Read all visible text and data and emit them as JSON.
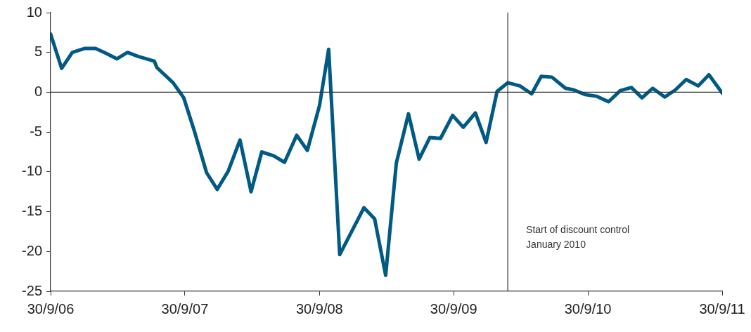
{
  "chart_data": {
    "type": "line",
    "x": [
      "2006-09-30",
      "2006-10-30",
      "2006-11-28",
      "2006-12-31",
      "2007-01-30",
      "2007-02-27",
      "2007-03-29",
      "2007-04-27",
      "2007-05-26",
      "2007-07-09",
      "2007-07-16",
      "2007-08-29",
      "2007-09-27",
      "2007-10-26",
      "2007-11-28",
      "2007-12-27",
      "2008-01-26",
      "2008-02-27",
      "2008-03-28",
      "2008-04-26",
      "2008-05-29",
      "2008-06-27",
      "2008-07-30",
      "2008-08-28",
      "2008-09-30",
      "2008-10-25",
      "2008-11-24",
      "2009-01-29",
      "2009-02-27",
      "2009-03-29",
      "2009-04-27",
      "2009-05-30",
      "2009-06-28",
      "2009-07-27",
      "2009-08-25",
      "2009-09-27",
      "2009-10-26",
      "2009-11-28",
      "2009-12-27",
      "2010-01-26",
      "2010-02-24",
      "2010-03-29",
      "2010-04-30",
      "2010-05-26",
      "2010-06-24",
      "2010-07-31",
      "2010-08-22",
      "2010-09-23",
      "2010-10-23",
      "2010-11-25",
      "2010-12-27",
      "2011-01-26",
      "2011-02-24",
      "2011-03-25",
      "2011-04-27",
      "2011-05-26",
      "2011-06-24",
      "2011-07-27",
      "2011-08-25",
      "2011-09-30"
    ],
    "series": [
      {
        "color": "#005a84",
        "values": [
          7.3,
          3.0,
          5.0,
          5.5,
          5.5,
          4.9,
          4.2,
          5.0,
          4.5,
          3.9,
          3.1,
          1.2,
          -0.7,
          -4.9,
          -10.1,
          -12.2,
          -9.9,
          -6.0,
          -12.5,
          -7.5,
          -8.0,
          -8.8,
          -5.4,
          -7.3,
          -1.7,
          5.4,
          -20.4,
          -14.5,
          -15.9,
          -23.0,
          -8.9,
          -2.7,
          -8.4,
          -5.7,
          -5.8,
          -2.9,
          -4.4,
          -2.6,
          -6.3,
          0.1,
          1.2,
          0.8,
          -0.2,
          2.0,
          1.9,
          0.5,
          0.3,
          -0.3,
          -0.5,
          -1.2,
          0.2,
          0.6,
          -0.7,
          0.5,
          -0.6,
          0.3,
          1.6,
          0.8,
          2.2,
          -0.1
        ]
      }
    ],
    "xlim": [
      "2006-09-30",
      "2011-09-30"
    ],
    "xticks": [
      {
        "value": "2006-09-30",
        "label": "30/9/06"
      },
      {
        "value": "2007-09-30",
        "label": "30/9/07"
      },
      {
        "value": "2008-09-30",
        "label": "30/9/08"
      },
      {
        "value": "2009-09-30",
        "label": "30/9/09"
      },
      {
        "value": "2010-09-30",
        "label": "30/9/10"
      },
      {
        "value": "2011-09-30",
        "label": "30/9/11"
      }
    ],
    "ylim": [
      -25,
      10
    ],
    "yticks": [
      -25,
      -20,
      -15,
      -10,
      -5,
      0,
      5,
      10
    ],
    "ref_lines": [
      {
        "axis": "y",
        "value": 0,
        "color": "#333333"
      },
      {
        "axis": "x",
        "value": "2010-02-24",
        "color": "#333333",
        "label": "Start of discount control January 2010"
      }
    ],
    "grid": false,
    "legend": false,
    "marker": "none",
    "line_style": "solid"
  }
}
